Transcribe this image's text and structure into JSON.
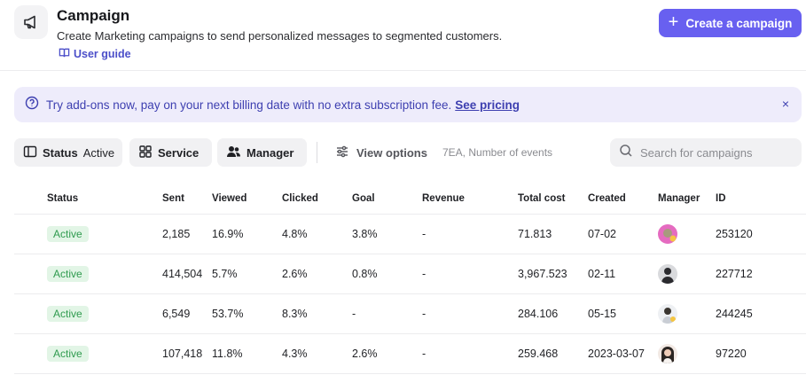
{
  "header": {
    "title": "Campaign",
    "description": "Create Marketing campaigns to send personalized messages to segmented customers.",
    "guide_label": "User guide",
    "create_button": "Create a campaign"
  },
  "banner": {
    "text": "Try add-ons now, pay on your next billing date with no extra subscription fee.",
    "link": "See pricing",
    "close": "×"
  },
  "filters": {
    "status_label": "Status",
    "status_value": "Active",
    "service_label": "Service",
    "manager_label": "Manager",
    "view_options": "View options",
    "view_meta": "7EA, Number of events",
    "search_placeholder": "Search for campaigns"
  },
  "table": {
    "columns": [
      "Status",
      "Sent",
      "Viewed",
      "Clicked",
      "Goal",
      "Revenue",
      "Total cost",
      "Created",
      "Manager",
      "ID"
    ],
    "rows": [
      {
        "status": "Active",
        "sent": "2,185",
        "viewed": "16.9%",
        "clicked": "4.8%",
        "goal": "3.8%",
        "revenue": "-",
        "total_cost": "71.813",
        "created": "07-02",
        "manager_avatar": "pink",
        "id": "253120"
      },
      {
        "status": "Active",
        "sent": "414,504",
        "viewed": "5.7%",
        "clicked": "2.6%",
        "goal": "0.8%",
        "revenue": "-",
        "total_cost": "3,967.523",
        "created": "02-11",
        "manager_avatar": "gray",
        "id": "227712"
      },
      {
        "status": "Active",
        "sent": "6,549",
        "viewed": "53.7%",
        "clicked": "8.3%",
        "goal": "-",
        "revenue": "-",
        "total_cost": "284.106",
        "created": "05-15",
        "manager_avatar": "light",
        "id": "244245"
      },
      {
        "status": "Active",
        "sent": "107,418",
        "viewed": "11.8%",
        "clicked": "4.3%",
        "goal": "2.6%",
        "revenue": "-",
        "total_cost": "259.468",
        "created": "2023-03-07",
        "manager_avatar": "woman",
        "id": "97220"
      }
    ]
  },
  "colors": {
    "accent": "#6860f0",
    "banner_bg": "#eeecfb",
    "banner_text": "#3d3fb0",
    "badge_bg": "#e2f5e6",
    "badge_text": "#2f9b4f"
  }
}
